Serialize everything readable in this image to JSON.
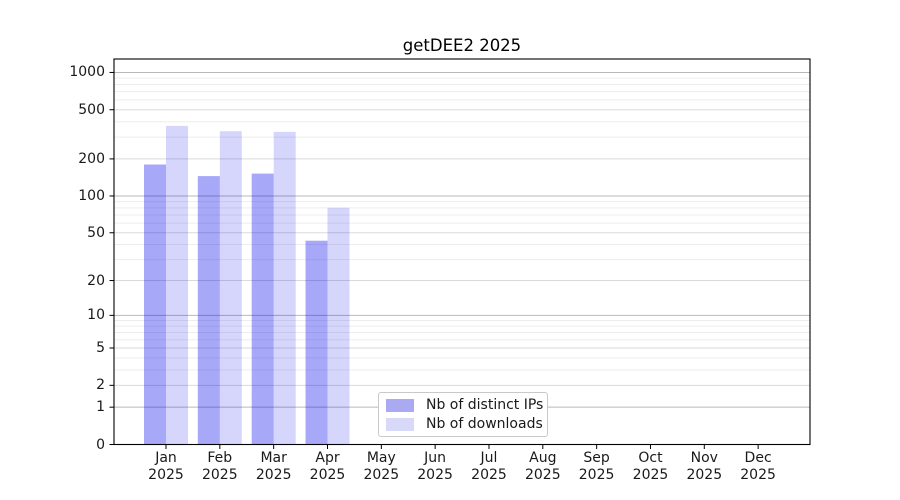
{
  "title": "getDEE2 2025",
  "chart_data": {
    "type": "bar",
    "title": "getDEE2 2025",
    "categories": [
      "Jan",
      "Feb",
      "Mar",
      "Apr",
      "May",
      "Jun",
      "Jul",
      "Aug",
      "Sep",
      "Oct",
      "Nov",
      "Dec"
    ],
    "x_tick_second_line": "2025",
    "series": [
      {
        "name": "Nb of distinct IPs",
        "values": [
          180,
          145,
          152,
          43,
          0,
          0,
          0,
          0,
          0,
          0,
          0,
          0
        ],
        "fill_color": "#0000eb",
        "fill_opacity": 0.34,
        "legend_color": "#aaaaf2"
      },
      {
        "name": "Nb of downloads",
        "values": [
          370,
          335,
          331,
          80,
          0,
          0,
          0,
          0,
          0,
          0,
          0,
          0
        ],
        "fill_color": "#0000eb",
        "fill_opacity": 0.16,
        "legend_color": "#d8d8f8"
      }
    ],
    "y_ticks": [
      1000,
      500,
      200,
      100,
      50,
      20,
      10,
      5,
      2,
      1,
      0
    ],
    "y_scale": "log1p",
    "ylim": [
      0,
      1285
    ],
    "xlabel": "",
    "ylabel": "",
    "grid": "horizontal",
    "legend_position": "inside lower-center",
    "colors": {
      "grid_major": "#b9b9b9",
      "grid_mid": "#dadada",
      "grid_minor": "#ededed",
      "spine": "#000000",
      "text": "#1a1a1a",
      "background": "#ffffff"
    }
  }
}
